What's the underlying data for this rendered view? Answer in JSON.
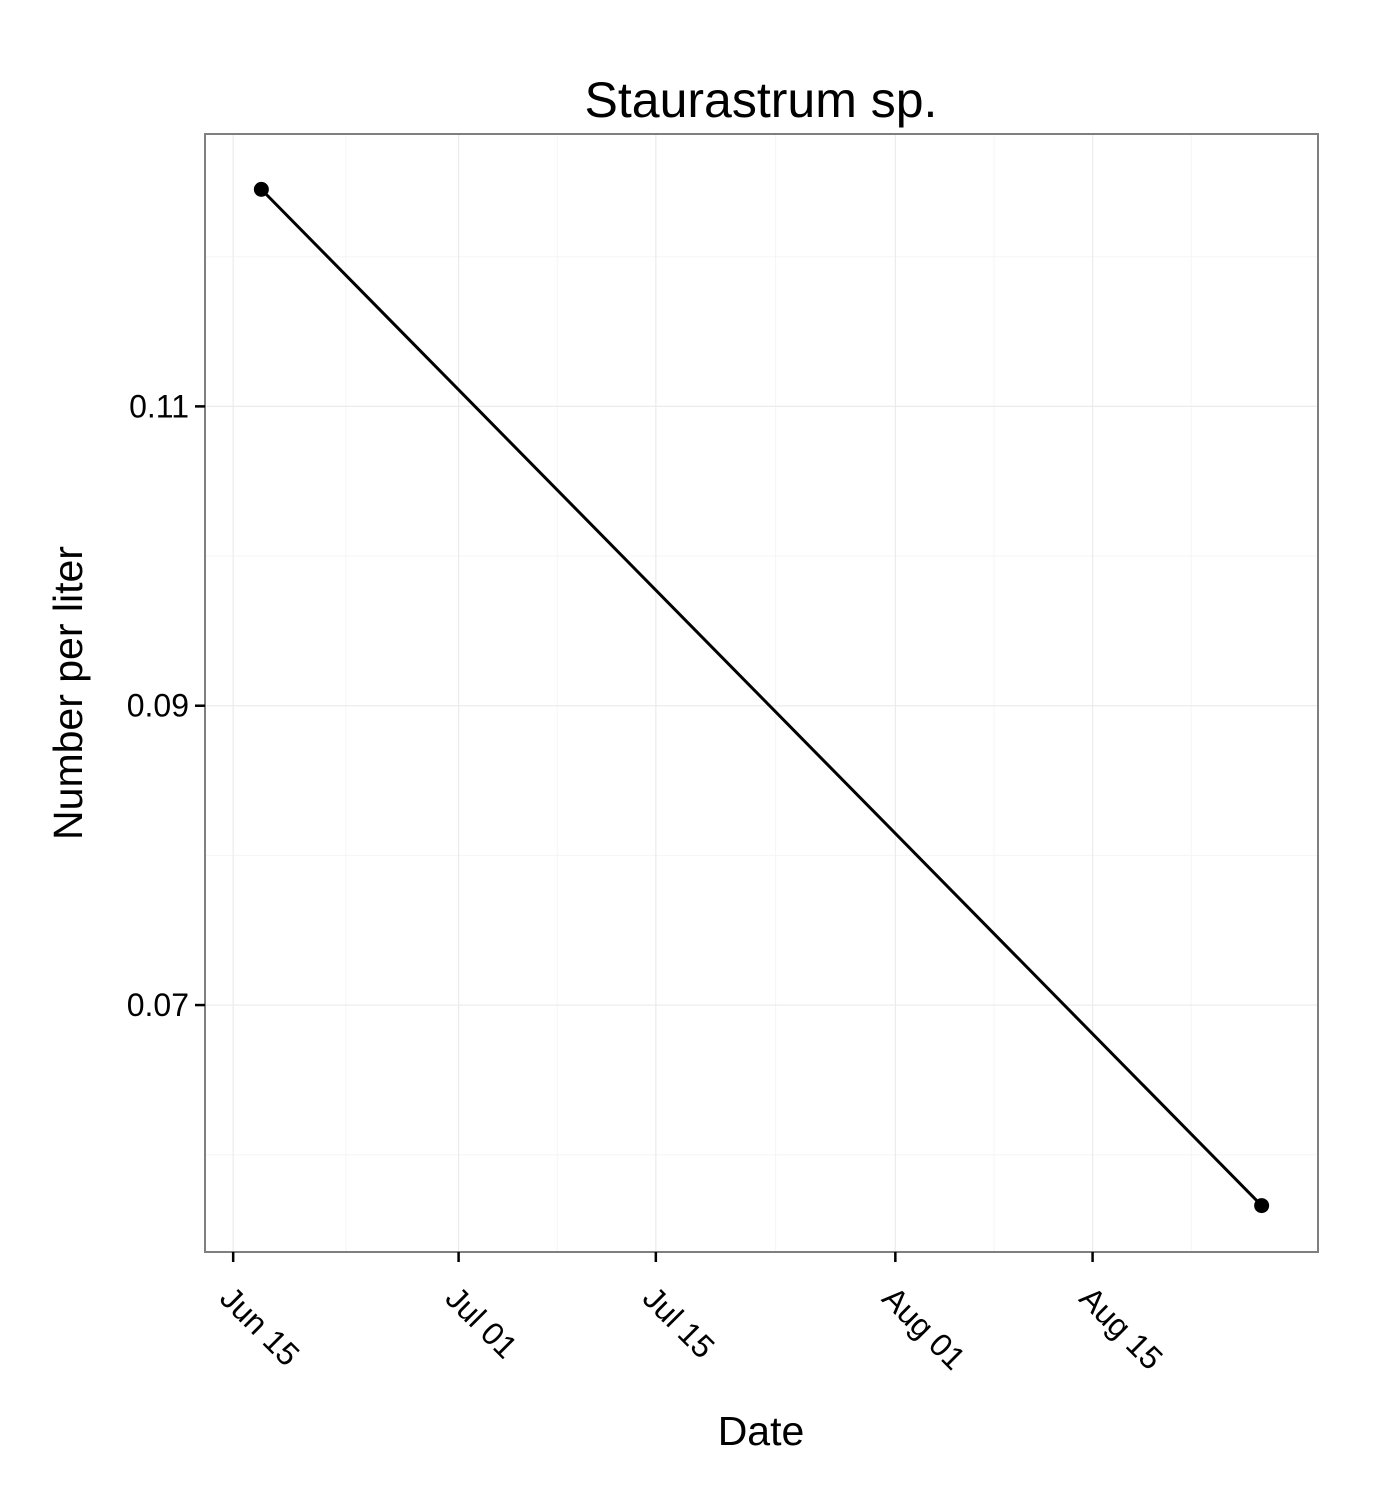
{
  "chart_data": {
    "type": "line",
    "title": "Staurastrum sp.",
    "xlabel": "Date",
    "ylabel": "Number per liter",
    "x_ticks": [
      "Jun 15",
      "Jul 01",
      "Jul 15",
      "Aug 01",
      "Aug 15"
    ],
    "y_ticks": [
      "0.07",
      "0.09",
      "0.11"
    ],
    "ylim": [
      0.0535,
      0.1282
    ],
    "xlim": [
      "2012-06-13",
      "2012-08-31"
    ],
    "grid": true,
    "series": [
      {
        "points": [
          {
            "x": "2012-06-17",
            "y": 0.1245
          },
          {
            "x": "2012-08-27",
            "y": 0.0566
          }
        ]
      }
    ],
    "colors": {
      "line": "#000000",
      "panel_border": "#7f7f7f",
      "grid": "#ebebeb"
    }
  }
}
